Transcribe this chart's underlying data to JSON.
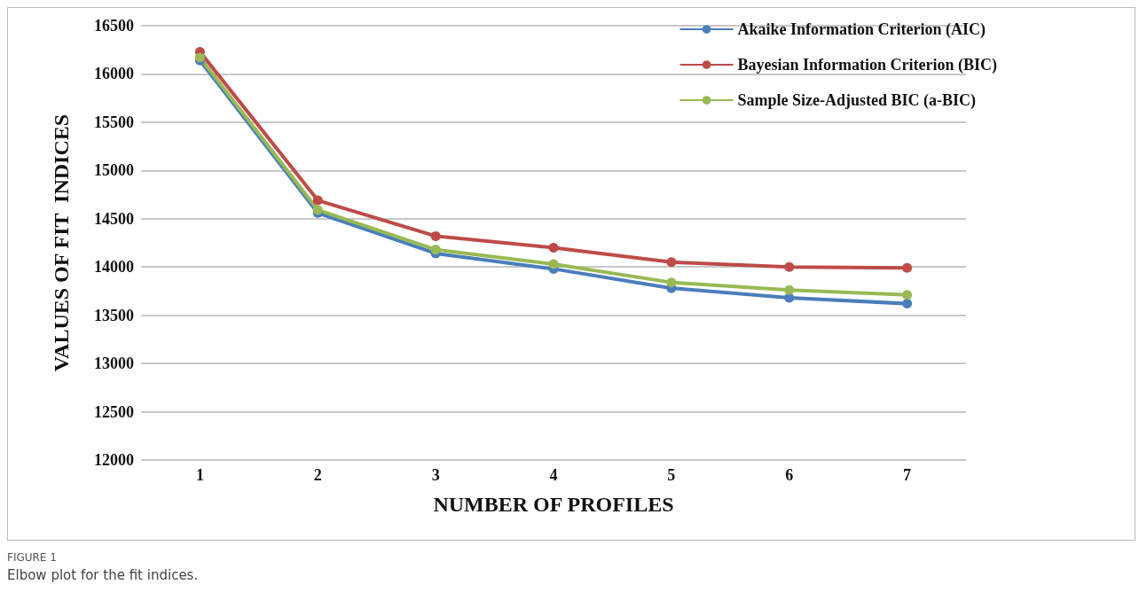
{
  "chart_data": {
    "type": "line",
    "xlabel": "NUMBER OF PROFILES",
    "ylabel": "VALUES OF FIT  INDICES",
    "categories": [
      "1",
      "2",
      "3",
      "4",
      "5",
      "6",
      "7"
    ],
    "series": [
      {
        "name": "Akaike Information Criterion (AIC)",
        "color": "#4a7ebb",
        "values": [
          16140,
          14560,
          14140,
          13980,
          13780,
          13680,
          13620
        ]
      },
      {
        "name": "Bayesian Information Criterion (BIC)",
        "color": "#be4b48",
        "values": [
          16230,
          14690,
          14320,
          14200,
          14050,
          14000,
          13990
        ]
      },
      {
        "name": "Sample Size-Adjusted BIC (a-BIC)",
        "color": "#98b954",
        "values": [
          16170,
          14590,
          14180,
          14030,
          13840,
          13760,
          13710
        ]
      }
    ],
    "ylim": [
      12000,
      16500
    ],
    "yticks": [
      12000,
      12500,
      13000,
      13500,
      14000,
      14500,
      15000,
      15500,
      16000,
      16500
    ],
    "grid": "y",
    "legend": "top right",
    "marker": "circle",
    "line_style": "solid",
    "annotations": [
      "FIGURE 1",
      "Elbow plot for the fit indices."
    ]
  }
}
